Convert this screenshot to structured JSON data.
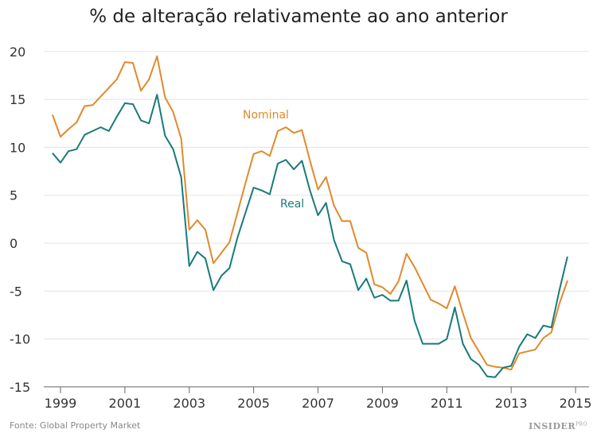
{
  "chart_data": {
    "type": "line",
    "title": "% de alteração relativamente ao ano anterior",
    "xlim": [
      1998.75,
      2015
    ],
    "ylim": [
      -15,
      20
    ],
    "x_ticks": [
      1999,
      2001,
      2003,
      2005,
      2007,
      2009,
      2011,
      2013,
      2015
    ],
    "y_ticks": [
      20,
      15,
      10,
      5,
      0,
      -5,
      -10,
      -15
    ],
    "grid": "horizontal",
    "x_start": 1998.75,
    "x_step": 0.25,
    "series": [
      {
        "name": "Nominal",
        "color": "#e08a2c",
        "values": [
          13.4,
          11.1,
          11.9,
          12.6,
          14.3,
          14.4,
          15.3,
          16.2,
          17.1,
          18.9,
          18.8,
          15.9,
          17.1,
          19.5,
          15.2,
          13.7,
          10.9,
          1.4,
          2.4,
          1.4,
          -2.1,
          -1.0,
          0.1,
          3.2,
          6.3,
          9.3,
          9.6,
          9.1,
          11.7,
          12.1,
          11.5,
          11.8,
          8.6,
          5.6,
          6.9,
          3.9,
          2.3,
          2.3,
          -0.5,
          -1.0,
          -4.3,
          -4.6,
          -5.3,
          -4.0,
          -1.1,
          -2.5,
          -4.2,
          -5.9,
          -6.3,
          -6.8,
          -4.5,
          -7.3,
          -9.9,
          -11.3,
          -12.7,
          -12.9,
          -13.0,
          -13.2,
          -11.5,
          -11.3,
          -11.1,
          -9.9,
          -9.3,
          -6.3,
          -3.9
        ]
      },
      {
        "name": "Real",
        "color": "#1a7a7a",
        "values": [
          9.4,
          8.4,
          9.6,
          9.8,
          11.3,
          11.7,
          12.1,
          11.7,
          13.2,
          14.6,
          14.5,
          12.8,
          12.5,
          15.5,
          11.2,
          9.8,
          6.9,
          -2.4,
          -0.9,
          -1.6,
          -4.9,
          -3.4,
          -2.6,
          0.6,
          3.2,
          5.8,
          5.5,
          5.1,
          8.3,
          8.7,
          7.7,
          8.6,
          5.5,
          2.9,
          4.2,
          0.3,
          -1.9,
          -2.2,
          -4.9,
          -3.7,
          -5.7,
          -5.4,
          -6.0,
          -6.0,
          -3.9,
          -8.1,
          -10.5,
          -10.5,
          -10.5,
          -10.0,
          -6.7,
          -10.5,
          -12.1,
          -12.7,
          -13.9,
          -14.0,
          -13.0,
          -12.8,
          -10.8,
          -9.5,
          -9.9,
          -8.6,
          -8.8,
          -4.9,
          -1.4
        ]
      }
    ]
  },
  "footer": {
    "source": "Fonte: Global Property Market",
    "logo": "INSIDER",
    "logo_suffix": "PRO"
  }
}
